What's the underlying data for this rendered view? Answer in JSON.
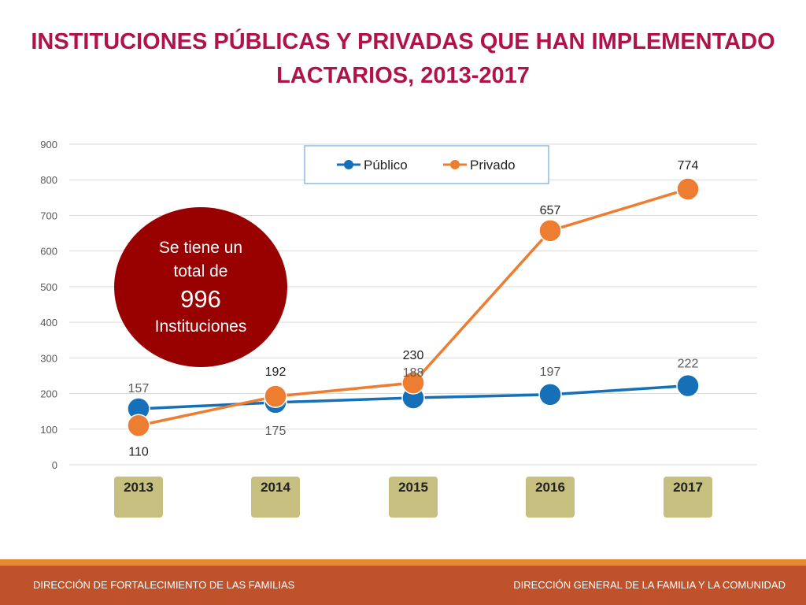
{
  "title": {
    "line1": "INSTITUCIONES PÚBLICAS Y PRIVADAS QUE HAN IMPLEMENTADO",
    "line2": "LACTARIOS, 2013-2017"
  },
  "callout": {
    "line1": "Se tiene un",
    "line2": "total de",
    "value": "996",
    "line3": "Instituciones"
  },
  "footer": {
    "left": "DIRECCIÓN DE FORTALECIMIENTO DE LAS FAMILIAS",
    "right": "DIRECCIÓN GENERAL DE LA FAMILIA Y LA COMUNIDAD"
  },
  "colors": {
    "title": "#b0124a",
    "publico": "#1570b8",
    "privado": "#ed7d31",
    "category_box": "#c6bf80",
    "callout": "#990000",
    "footer": "#c0522b",
    "footer_stripe": "#e58a2e"
  },
  "chart_data": {
    "type": "line",
    "title": "INSTITUCIONES PÚBLICAS Y PRIVADAS QUE HAN IMPLEMENTADO LACTARIOS, 2013-2017",
    "categories": [
      "2013",
      "2014",
      "2015",
      "2016",
      "2017"
    ],
    "series": [
      {
        "name": "Público",
        "values": [
          157,
          175,
          188,
          197,
          222
        ]
      },
      {
        "name": "Privado",
        "values": [
          110,
          192,
          230,
          657,
          774
        ]
      }
    ],
    "ylim": [
      0,
      900
    ],
    "yticks": [
      0,
      100,
      200,
      300,
      400,
      500,
      600,
      700,
      800,
      900
    ],
    "grid": true,
    "legend": "top-center",
    "data_labels": true,
    "xlabel": "",
    "ylabel": ""
  }
}
